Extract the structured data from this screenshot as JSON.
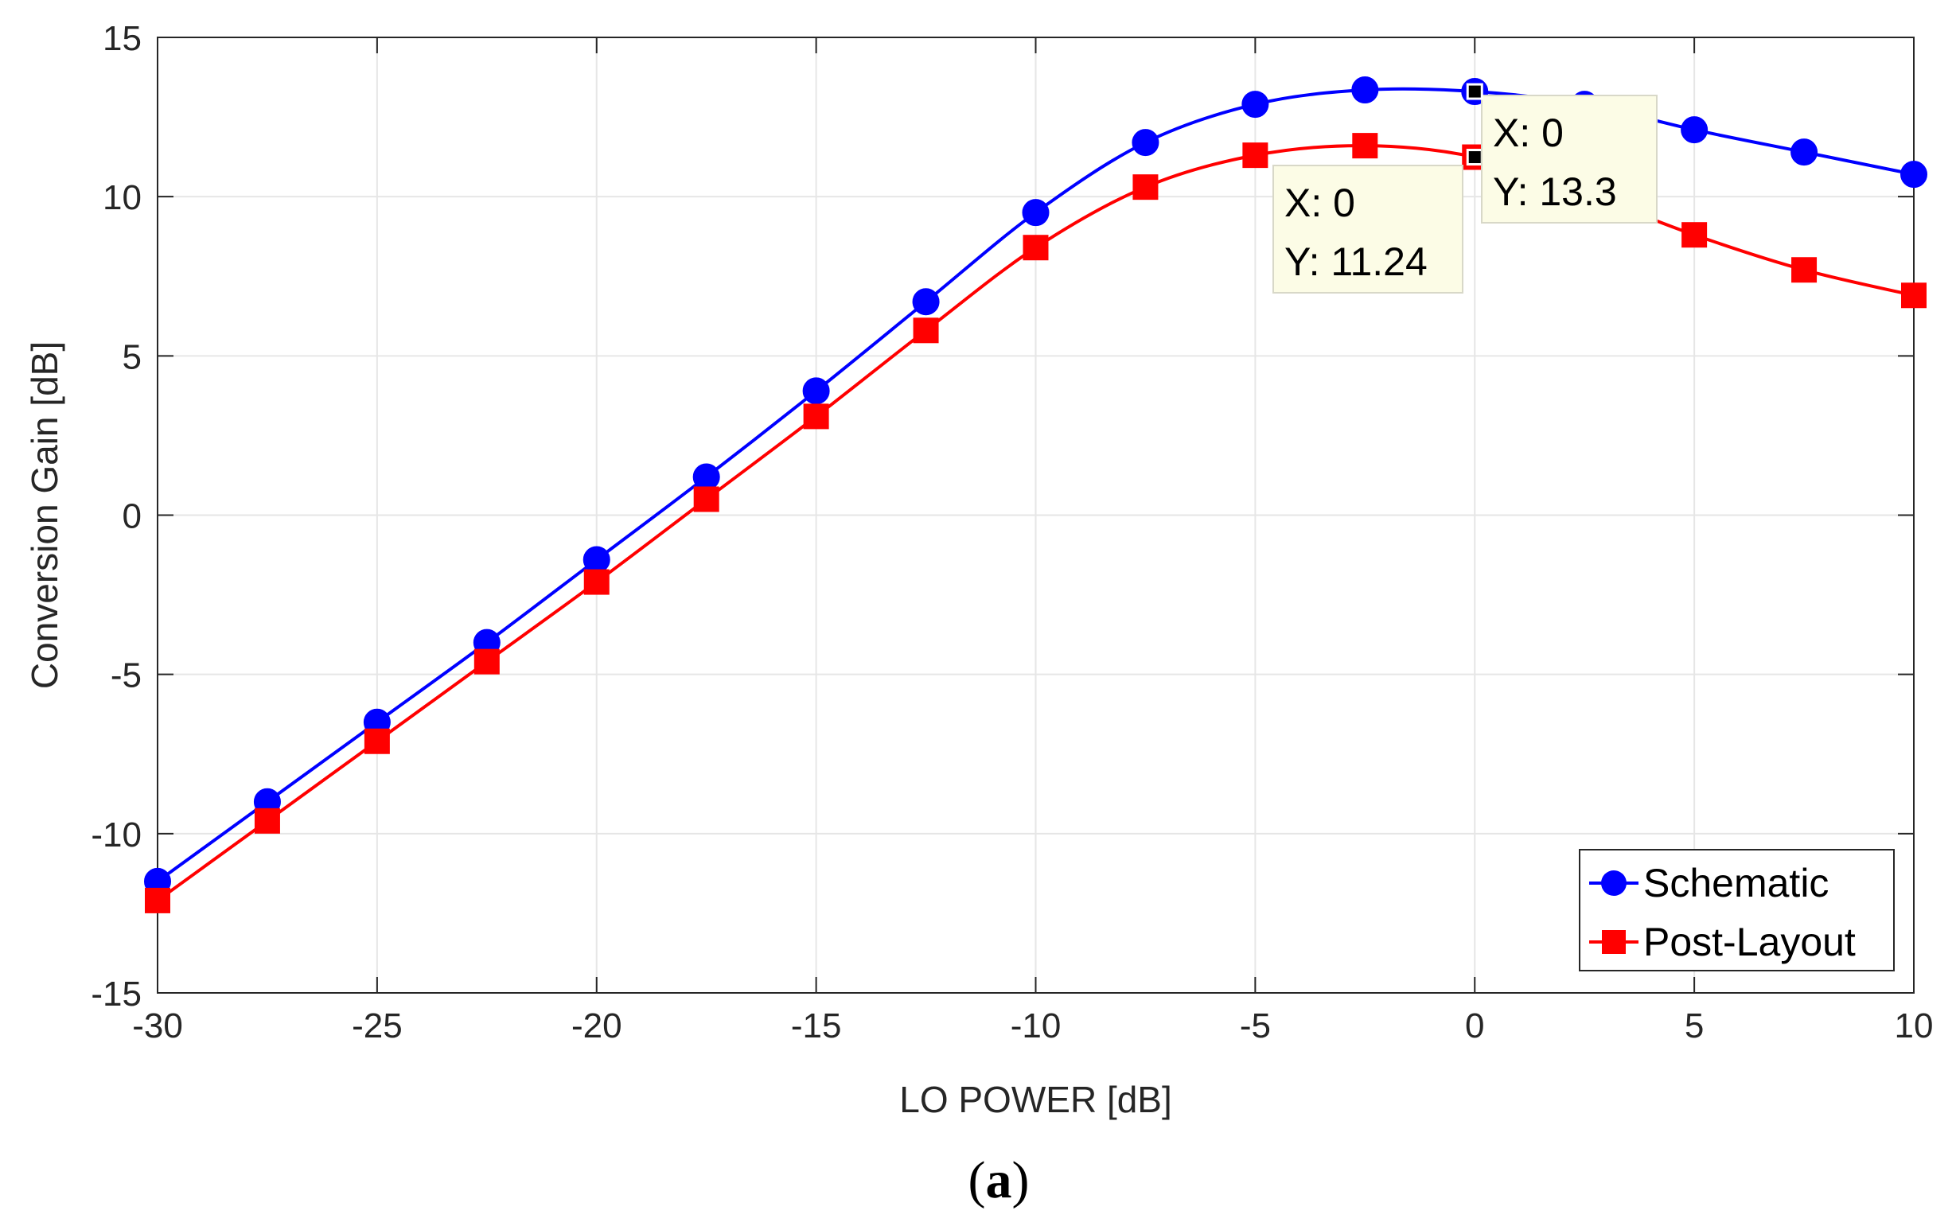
{
  "chart_data": {
    "type": "line",
    "xlabel": "LO POWER [dB]",
    "ylabel": "Conversion Gain [dB]",
    "xlim": [
      -30,
      10
    ],
    "ylim": [
      -15,
      15
    ],
    "x_ticks": [
      "-30",
      "-25",
      "-20",
      "-15",
      "-10",
      "-5",
      "0",
      "5",
      "10"
    ],
    "y_ticks": [
      "-15",
      "-10",
      "-5",
      "0",
      "5",
      "10",
      "15"
    ],
    "grid": true,
    "legend_position": "bottom-right",
    "x": [
      -30,
      -27.5,
      -25,
      -22.5,
      -20,
      -17.5,
      -15,
      -12.5,
      -10,
      -7.5,
      -5,
      -2.5,
      0,
      2.5,
      5,
      7.5,
      10
    ],
    "series": [
      {
        "name": "Schematic",
        "color": "#0000ff",
        "marker": "circle",
        "values": [
          -11.5,
          -9.0,
          -6.5,
          -4.0,
          -1.4,
          1.2,
          3.9,
          6.7,
          9.5,
          11.7,
          12.9,
          13.35,
          13.3,
          12.9,
          12.1,
          11.4,
          10.7
        ]
      },
      {
        "name": "Post-Layout",
        "color": "#ff0000",
        "marker": "square",
        "values": [
          -12.1,
          -9.6,
          -7.1,
          -4.6,
          -2.1,
          0.5,
          3.1,
          5.8,
          8.4,
          10.3,
          11.3,
          11.6,
          11.24,
          10.1,
          8.8,
          7.7,
          6.9
        ]
      }
    ],
    "datatips": [
      {
        "series": "Post-Layout",
        "x_text": "X: 0",
        "y_text": "Y: 11.24",
        "x": 0,
        "y": 11.24
      },
      {
        "series": "Schematic",
        "x_text": "X: 0",
        "y_text": "Y: 13.3",
        "x": 0,
        "y": 13.3
      }
    ],
    "caption_open": "(",
    "caption_letter": "a",
    "caption_close": ")"
  }
}
